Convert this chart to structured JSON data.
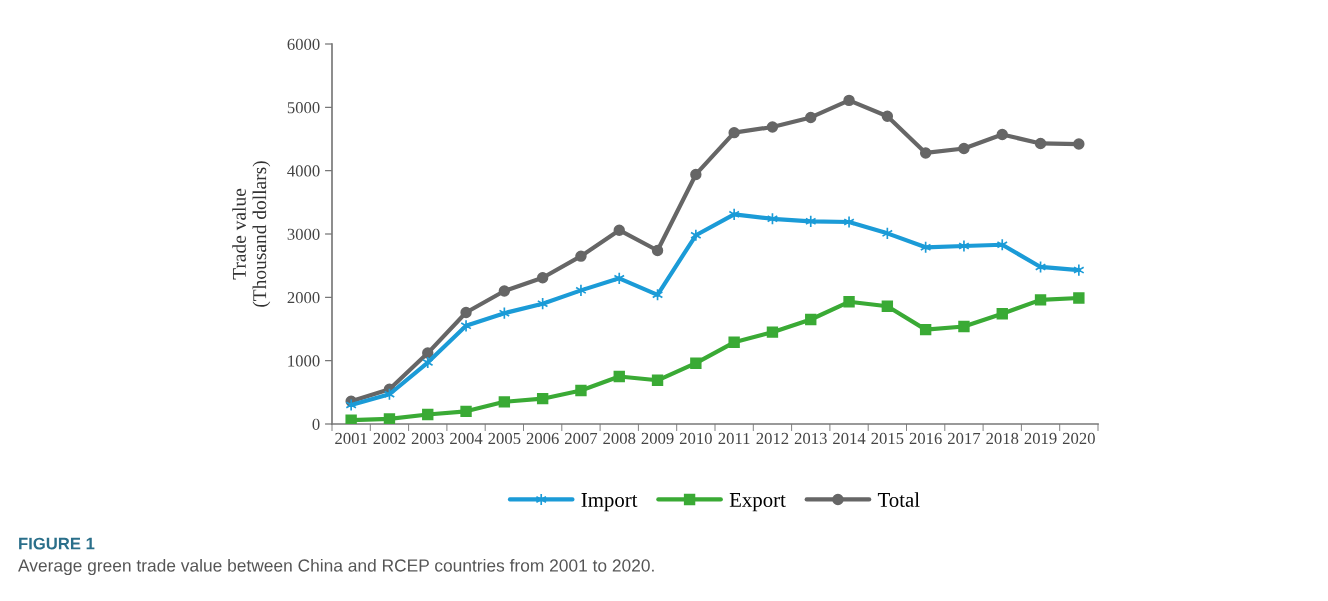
{
  "chart_data": {
    "type": "line",
    "categories": [
      "2001",
      "2002",
      "2003",
      "2004",
      "2005",
      "2006",
      "2007",
      "2008",
      "2009",
      "2010",
      "2011",
      "2012",
      "2013",
      "2014",
      "2015",
      "2016",
      "2017",
      "2018",
      "2019",
      "2020"
    ],
    "ylabel": "Trade value\n(Thousand dollars)",
    "ylim": [
      0,
      6000
    ],
    "yticks": [
      0,
      1000,
      2000,
      3000,
      4000,
      5000,
      6000
    ],
    "grid": false,
    "legend": "bottom",
    "line_style": "solid",
    "series": [
      {
        "name": "Import",
        "color": "#1b9bd7",
        "marker": "cross",
        "values": [
          300,
          470,
          970,
          1550,
          1750,
          1900,
          2110,
          2300,
          2040,
          2980,
          3310,
          3240,
          3200,
          3190,
          3010,
          2790,
          2810,
          2830,
          2480,
          2430
        ]
      },
      {
        "name": "Export",
        "color": "#3aaa35",
        "marker": "square",
        "values": [
          60,
          80,
          150,
          200,
          350,
          400,
          530,
          750,
          690,
          960,
          1290,
          1450,
          1650,
          1930,
          1860,
          1490,
          1540,
          1740,
          1960,
          1990
        ]
      },
      {
        "name": "Total",
        "color": "#666666",
        "marker": "circle",
        "values": [
          360,
          550,
          1120,
          1760,
          2100,
          2310,
          2650,
          3060,
          2740,
          3940,
          4600,
          4690,
          4840,
          5110,
          4860,
          4280,
          4350,
          4570,
          4430,
          4420
        ]
      }
    ],
    "annotations": [
      "FIGURE 1",
      "Average green trade value between China and RCEP countries from 2001 to 2020."
    ]
  }
}
